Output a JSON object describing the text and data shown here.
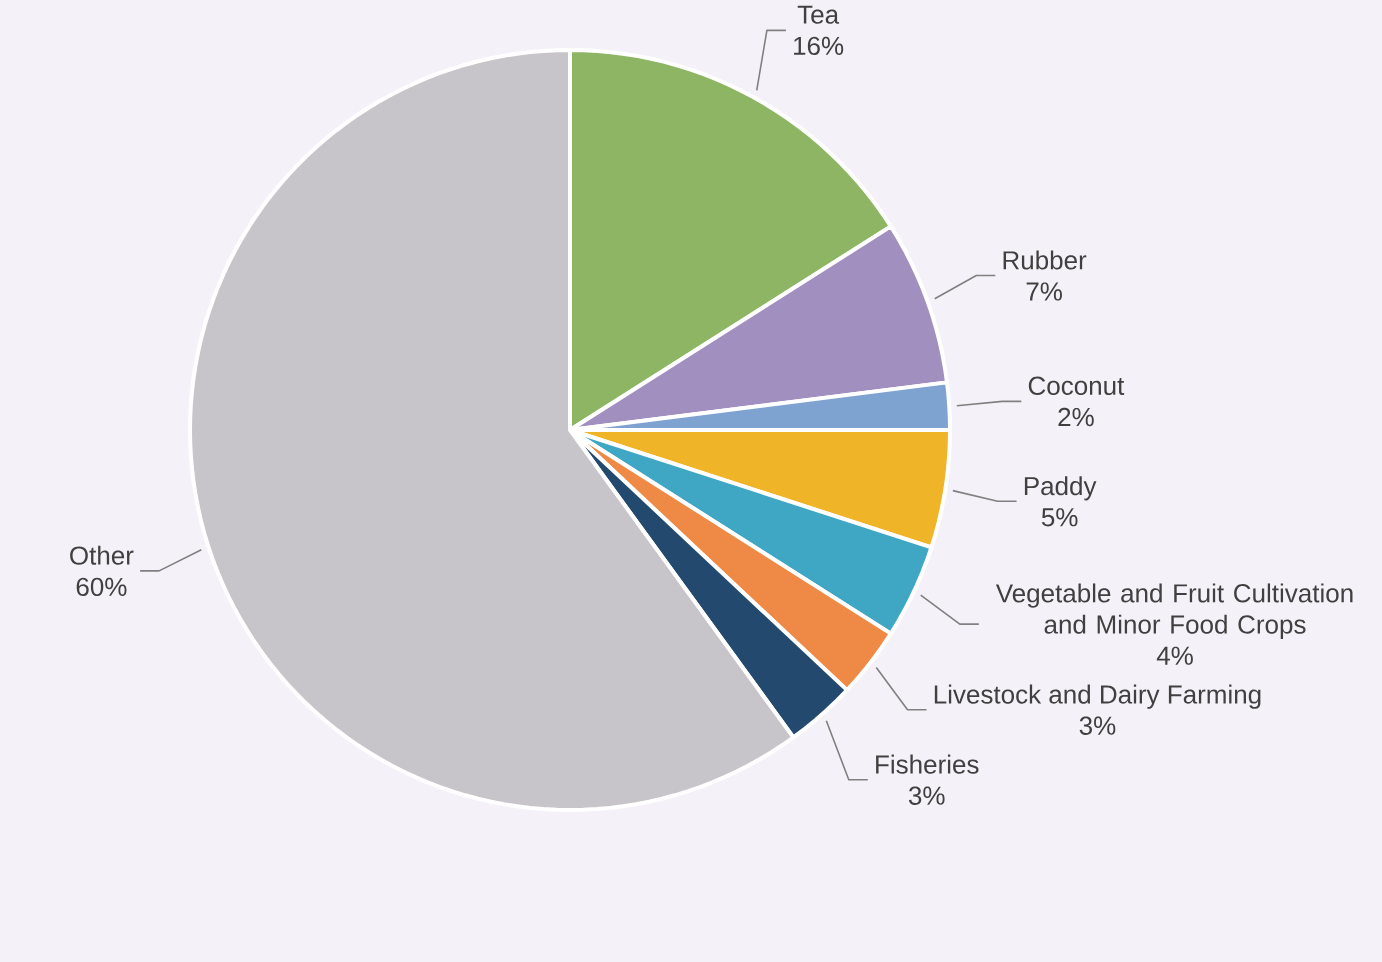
{
  "chart_data": {
    "type": "pie",
    "categories": [
      "Tea",
      "Rubber",
      "Coconut",
      "Paddy",
      "Vegetable and Fruit Cultivation and Minor Food Crops",
      "Livestock and Dairy Farming",
      "Fisheries",
      "Other"
    ],
    "values": [
      16,
      7,
      2,
      5,
      4,
      3,
      3,
      60
    ],
    "colors": [
      "#8db564",
      "#a08fbf",
      "#7fa3d0",
      "#f0b428",
      "#3fa6c4",
      "#ee8a45",
      "#234a6e",
      "#c8c5ca"
    ],
    "value_labels": [
      "16%",
      "7%",
      "2%",
      "5%",
      "4%",
      "3%",
      "3%",
      "60%"
    ]
  }
}
